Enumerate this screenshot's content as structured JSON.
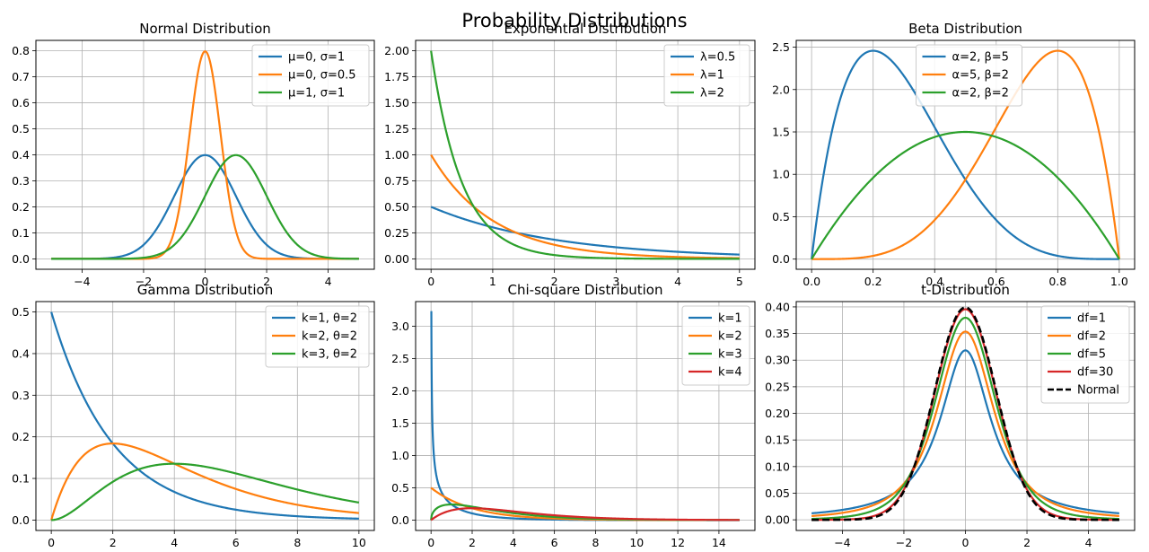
{
  "suptitle": "Probability Distributions",
  "chart_data": [
    {
      "type": "line",
      "title": "Normal Distribution",
      "dist": "normal",
      "xlim": [
        -5.5,
        5.5
      ],
      "ylim": [
        -0.04,
        0.84
      ],
      "xticks": [
        -4,
        -2,
        0,
        2,
        4
      ],
      "yticks": [
        0.0,
        0.1,
        0.2,
        0.3,
        0.4,
        0.5,
        0.6,
        0.7,
        0.8
      ],
      "ytick_decimals": 1,
      "grid": true,
      "legend_position": "top-right",
      "series": [
        {
          "name": "μ=0, σ=1",
          "color": "#1f77b4",
          "domain": [
            -5,
            5
          ],
          "params": {
            "mu": 0,
            "sigma": 1
          }
        },
        {
          "name": "μ=0, σ=0.5",
          "color": "#ff7f0e",
          "domain": [
            -5,
            5
          ],
          "params": {
            "mu": 0,
            "sigma": 0.5
          }
        },
        {
          "name": "μ=1, σ=1",
          "color": "#2ca02c",
          "domain": [
            -5,
            5
          ],
          "params": {
            "mu": 1,
            "sigma": 1
          }
        }
      ]
    },
    {
      "type": "line",
      "title": "Exponential Distribution",
      "dist": "exponential",
      "xlim": [
        -0.25,
        5.25
      ],
      "ylim": [
        -0.1,
        2.1
      ],
      "xticks": [
        0,
        1,
        2,
        3,
        4,
        5
      ],
      "yticks": [
        0.0,
        0.25,
        0.5,
        0.75,
        1.0,
        1.25,
        1.5,
        1.75,
        2.0
      ],
      "ytick_decimals": 2,
      "grid": true,
      "legend_position": "top-right",
      "series": [
        {
          "name": "λ=0.5",
          "color": "#1f77b4",
          "domain": [
            0,
            5
          ],
          "params": {
            "lambda": 0.5
          }
        },
        {
          "name": "λ=1",
          "color": "#ff7f0e",
          "domain": [
            0,
            5
          ],
          "params": {
            "lambda": 1
          }
        },
        {
          "name": "λ=2",
          "color": "#2ca02c",
          "domain": [
            0,
            5
          ],
          "params": {
            "lambda": 2
          }
        }
      ]
    },
    {
      "type": "line",
      "title": "Beta Distribution",
      "dist": "beta",
      "xlim": [
        -0.05,
        1.05
      ],
      "ylim": [
        -0.12,
        2.58
      ],
      "xticks": [
        0.0,
        0.2,
        0.4,
        0.6,
        0.8,
        1.0
      ],
      "xtick_decimals": 1,
      "yticks": [
        0.0,
        0.5,
        1.0,
        1.5,
        2.0,
        2.5
      ],
      "ytick_decimals": 1,
      "grid": true,
      "legend_position": "top-center",
      "series": [
        {
          "name": "α=2, β=5",
          "color": "#1f77b4",
          "domain": [
            0,
            1
          ],
          "params": {
            "a": 2,
            "b": 5
          }
        },
        {
          "name": "α=5, β=2",
          "color": "#ff7f0e",
          "domain": [
            0,
            1
          ],
          "params": {
            "a": 5,
            "b": 2
          }
        },
        {
          "name": "α=2, β=2",
          "color": "#2ca02c",
          "domain": [
            0,
            1
          ],
          "params": {
            "a": 2,
            "b": 2
          }
        }
      ]
    },
    {
      "type": "line",
      "title": "Gamma Distribution",
      "dist": "gamma",
      "xlim": [
        -0.5,
        10.5
      ],
      "ylim": [
        -0.025,
        0.525
      ],
      "xticks": [
        0,
        2,
        4,
        6,
        8,
        10
      ],
      "yticks": [
        0.0,
        0.1,
        0.2,
        0.3,
        0.4,
        0.5
      ],
      "ytick_decimals": 1,
      "grid": true,
      "legend_position": "top-right",
      "series": [
        {
          "name": "k=1, θ=2",
          "color": "#1f77b4",
          "domain": [
            0,
            10
          ],
          "params": {
            "k": 1,
            "theta": 2
          }
        },
        {
          "name": "k=2, θ=2",
          "color": "#ff7f0e",
          "domain": [
            0,
            10
          ],
          "params": {
            "k": 2,
            "theta": 2
          }
        },
        {
          "name": "k=3, θ=2",
          "color": "#2ca02c",
          "domain": [
            0,
            10
          ],
          "params": {
            "k": 3,
            "theta": 2
          }
        }
      ]
    },
    {
      "type": "line",
      "title": "Chi-square Distribution",
      "dist": "chi2",
      "xlim": [
        -0.75,
        15.75
      ],
      "ylim": [
        -0.16,
        3.38
      ],
      "xticks": [
        0,
        2,
        4,
        6,
        8,
        10,
        12,
        14
      ],
      "yticks": [
        0.0,
        0.5,
        1.0,
        1.5,
        2.0,
        2.5,
        3.0
      ],
      "ytick_decimals": 1,
      "grid": true,
      "legend_position": "top-right",
      "series": [
        {
          "name": "k=1",
          "color": "#1f77b4",
          "domain": [
            0.015,
            15
          ],
          "params": {
            "k": 1
          }
        },
        {
          "name": "k=2",
          "color": "#ff7f0e",
          "domain": [
            0,
            15
          ],
          "params": {
            "k": 2
          }
        },
        {
          "name": "k=3",
          "color": "#2ca02c",
          "domain": [
            0,
            15
          ],
          "params": {
            "k": 3
          }
        },
        {
          "name": "k=4",
          "color": "#d62728",
          "domain": [
            0,
            15
          ],
          "params": {
            "k": 4
          }
        }
      ]
    },
    {
      "type": "line",
      "title": "t-Distribution",
      "dist": "t",
      "xlim": [
        -5.5,
        5.5
      ],
      "ylim": [
        -0.02,
        0.41
      ],
      "xticks": [
        -4,
        -2,
        0,
        2,
        4
      ],
      "yticks": [
        0.0,
        0.05,
        0.1,
        0.15,
        0.2,
        0.25,
        0.3,
        0.35,
        0.4
      ],
      "ytick_decimals": 2,
      "grid": true,
      "legend_position": "top-right",
      "series": [
        {
          "name": "df=1",
          "color": "#1f77b4",
          "domain": [
            -5,
            5
          ],
          "params": {
            "df": 1
          }
        },
        {
          "name": "df=2",
          "color": "#ff7f0e",
          "domain": [
            -5,
            5
          ],
          "params": {
            "df": 2
          }
        },
        {
          "name": "df=5",
          "color": "#2ca02c",
          "domain": [
            -5,
            5
          ],
          "params": {
            "df": 5
          }
        },
        {
          "name": "df=30",
          "color": "#d62728",
          "domain": [
            -5,
            5
          ],
          "params": {
            "df": 30
          }
        },
        {
          "name": "Normal",
          "color": "#000000",
          "dashed": true,
          "domain": [
            -5,
            5
          ],
          "params": {
            "df": "inf"
          }
        }
      ]
    }
  ]
}
